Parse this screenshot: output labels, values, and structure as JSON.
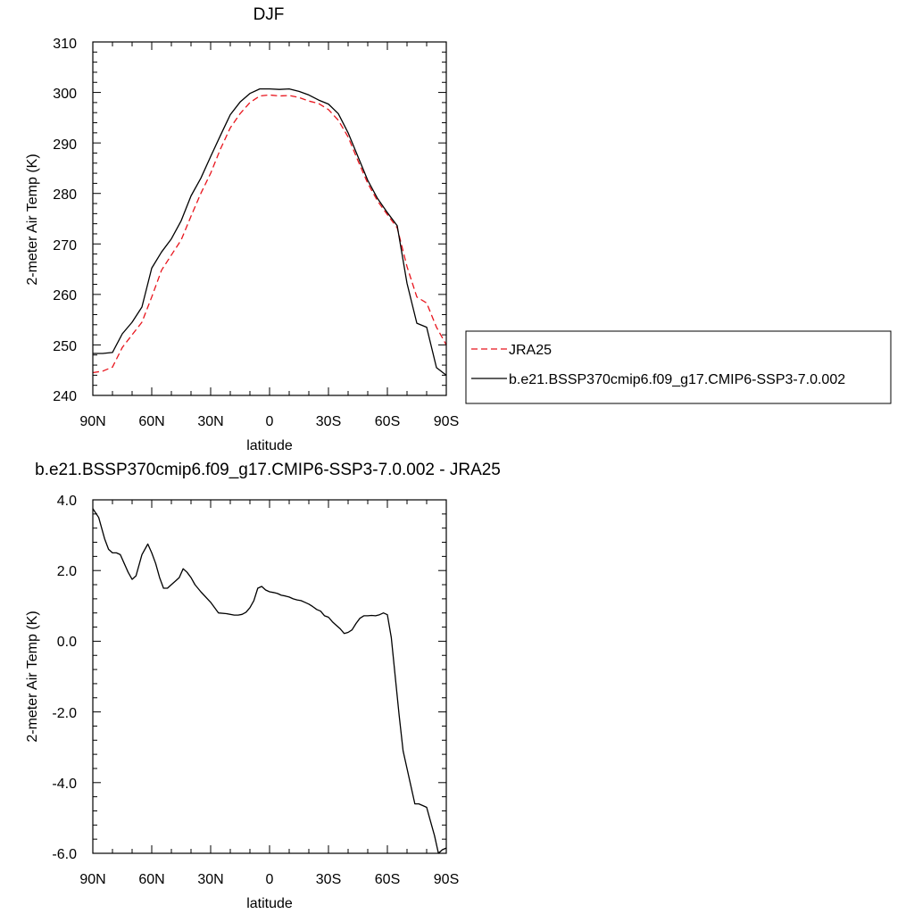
{
  "chart_data": [
    {
      "type": "line",
      "title": "DJF",
      "xlabel": "latitude",
      "ylabel": "2-meter Air Temp (K)",
      "xlim": [
        90,
        -90
      ],
      "ylim": [
        240,
        310
      ],
      "x_ticks": [
        90,
        60,
        30,
        0,
        -30,
        -60,
        -90
      ],
      "x_tick_labels": [
        "90N",
        "60N",
        "30N",
        "0",
        "30S",
        "60S",
        "90S"
      ],
      "y_ticks": [
        240,
        250,
        260,
        270,
        280,
        290,
        300,
        310
      ],
      "y_tick_labels": [
        "240",
        "250",
        "260",
        "270",
        "280",
        "290",
        "300",
        "310"
      ],
      "grid": false,
      "legend_position": "outside-right",
      "x": [
        90,
        85,
        80,
        75,
        70,
        65,
        60,
        55,
        50,
        45,
        40,
        35,
        30,
        25,
        20,
        15,
        10,
        5,
        0,
        -5,
        -10,
        -15,
        -20,
        -25,
        -30,
        -35,
        -40,
        -45,
        -50,
        -55,
        -60,
        -65,
        -70,
        -75,
        -80,
        -85,
        -90
      ],
      "series": [
        {
          "name": "JRA25",
          "color": "#e8141c",
          "dash": "dashed",
          "values": [
            244.5,
            244.8,
            245.6,
            249.5,
            252,
            254.5,
            259.5,
            264.8,
            267.8,
            270.8,
            275.5,
            280,
            284,
            288.8,
            293,
            295.8,
            298,
            299.3,
            299.5,
            299.3,
            299.4,
            299,
            298.3,
            297.8,
            296.6,
            294.5,
            291.2,
            286.5,
            282,
            278.5,
            275.8,
            273.2,
            265.5,
            259.5,
            258.3,
            253.5,
            250
          ]
        },
        {
          "name": "b.e21.BSSP370cmip6.f09_g17.CMIP6-SSP3-7.0.002",
          "color": "#000000",
          "dash": "solid",
          "values": [
            248.3,
            248.3,
            248.5,
            252.2,
            254.5,
            257.5,
            265.2,
            268.4,
            271,
            274.6,
            279.5,
            283,
            287.3,
            291.5,
            295.6,
            298.1,
            299.8,
            300.7,
            300.7,
            300.6,
            300.7,
            300.2,
            299.5,
            298.5,
            297.7,
            295.8,
            292,
            287.3,
            282.6,
            279,
            276.2,
            273.6,
            262.2,
            254.3,
            253.5,
            245.5,
            244
          ]
        }
      ]
    },
    {
      "type": "line",
      "title": "b.e21.BSSP370cmip6.f09_g17.CMIP6-SSP3-7.0.002 - JRA25",
      "xlabel": "latitude",
      "ylabel": "2-meter Air Temp (K)",
      "xlim": [
        90,
        -90
      ],
      "ylim": [
        -6,
        4
      ],
      "x_ticks": [
        90,
        60,
        30,
        0,
        -30,
        -60,
        -90
      ],
      "x_tick_labels": [
        "90N",
        "60N",
        "30N",
        "0",
        "30S",
        "60S",
        "90S"
      ],
      "y_ticks": [
        -6,
        -4,
        -2,
        0,
        2,
        4
      ],
      "y_tick_labels": [
        "-6.0",
        "-4.0",
        "-2.0",
        "0.0",
        "2.0",
        "4.0"
      ],
      "grid": false,
      "x": [
        90,
        87,
        84,
        82,
        80,
        78,
        76,
        74,
        72,
        70,
        68,
        65,
        62,
        60,
        58,
        56,
        54,
        52,
        50,
        48,
        46,
        44,
        42,
        40,
        38,
        35,
        30,
        26,
        22,
        18,
        16,
        14,
        12,
        10,
        8,
        6,
        4,
        2,
        0,
        -2,
        -4,
        -6,
        -8,
        -10,
        -12,
        -14,
        -16,
        -18,
        -20,
        -22,
        -24,
        -26,
        -28,
        -30,
        -32,
        -34,
        -36,
        -38,
        -40,
        -42,
        -44,
        -46,
        -48,
        -50,
        -52,
        -54,
        -56,
        -58,
        -60,
        -62,
        -64,
        -66,
        -68,
        -70,
        -72,
        -74,
        -76,
        -78,
        -80,
        -82,
        -84,
        -86,
        -88,
        -90
      ],
      "series": [
        {
          "name": "",
          "color": "#000000",
          "dash": "solid",
          "values": [
            3.75,
            3.5,
            2.9,
            2.6,
            2.5,
            2.5,
            2.45,
            2.2,
            1.95,
            1.75,
            1.85,
            2.45,
            2.75,
            2.5,
            2.2,
            1.8,
            1.5,
            1.5,
            1.6,
            1.7,
            1.8,
            2.05,
            1.95,
            1.8,
            1.6,
            1.4,
            1.1,
            0.8,
            0.78,
            0.74,
            0.74,
            0.76,
            0.82,
            0.95,
            1.15,
            1.5,
            1.55,
            1.45,
            1.4,
            1.38,
            1.35,
            1.3,
            1.28,
            1.25,
            1.2,
            1.17,
            1.15,
            1.1,
            1.05,
            0.98,
            0.9,
            0.85,
            0.72,
            0.68,
            0.55,
            0.45,
            0.35,
            0.22,
            0.25,
            0.32,
            0.5,
            0.65,
            0.72,
            0.72,
            0.73,
            0.72,
            0.75,
            0.8,
            0.75,
            0.1,
            -1.0,
            -2.1,
            -3.1,
            -3.6,
            -4.1,
            -4.6,
            -4.6,
            -4.65,
            -4.7,
            -5.1,
            -5.5,
            -6.0,
            -5.9,
            -5.85
          ]
        }
      ]
    }
  ]
}
